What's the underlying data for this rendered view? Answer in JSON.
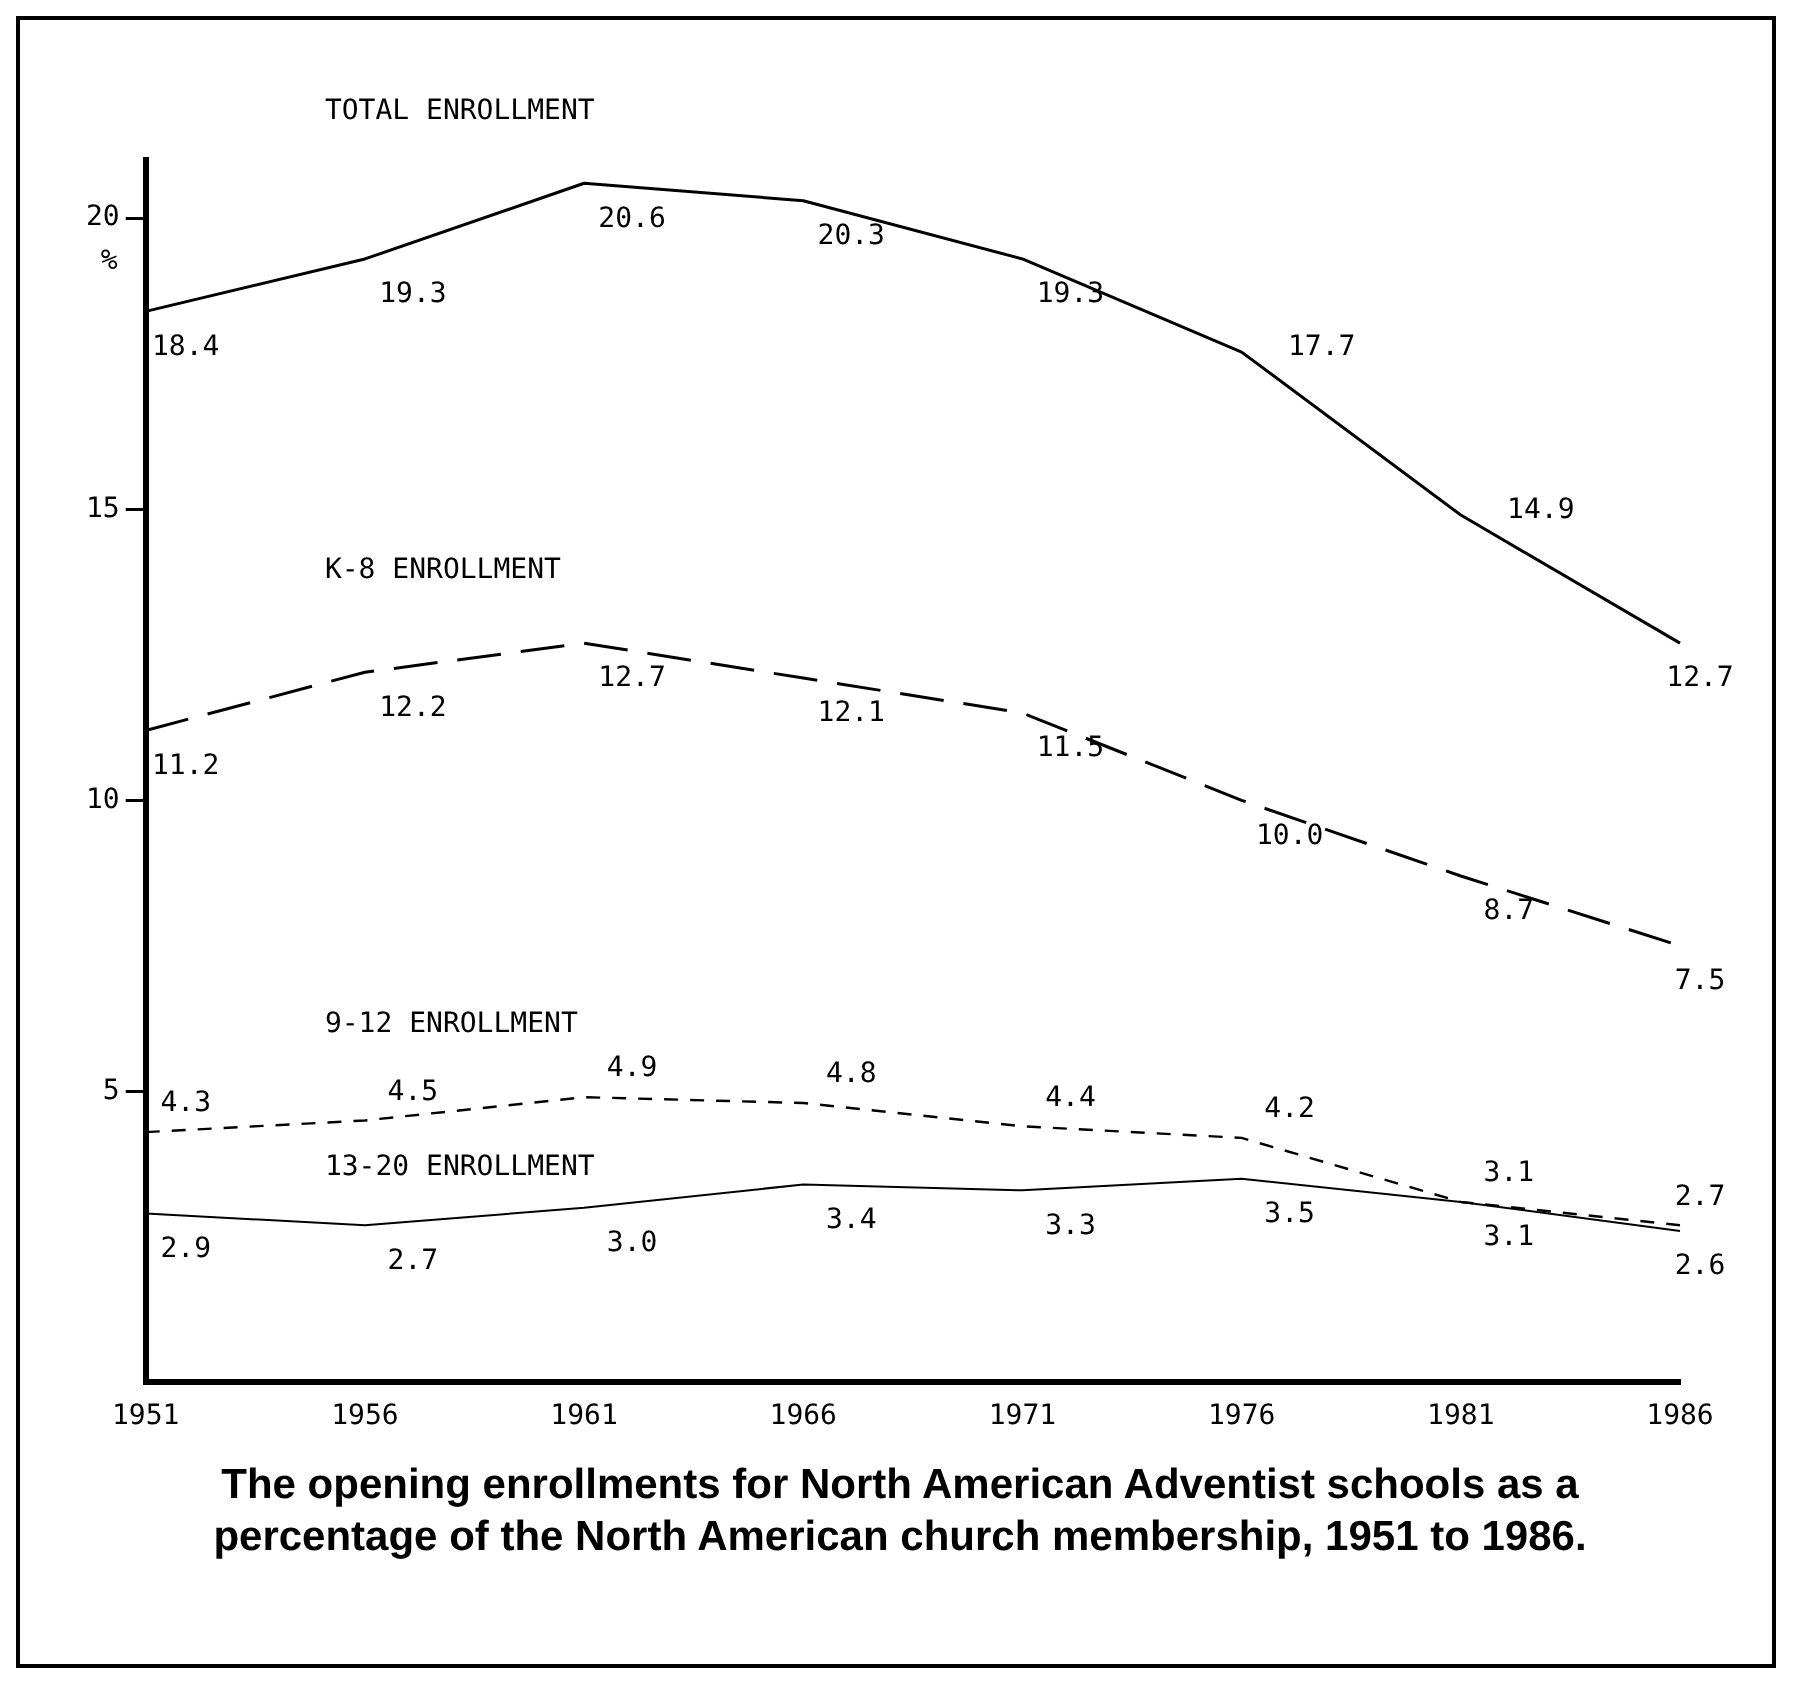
{
  "chart_data": {
    "type": "line",
    "ylabel": "%",
    "categories": [
      "1951",
      "1956",
      "1961",
      "1966",
      "1971",
      "1976",
      "1981",
      "1986"
    ],
    "ylim": [
      0,
      21
    ],
    "yticks": [
      5,
      10,
      15,
      20
    ],
    "grid": false,
    "legend": false,
    "marker": "none",
    "series": [
      {
        "name": "TOTAL ENROLLMENT",
        "color": "#000000",
        "line_style": "solid",
        "values": [
          18.4,
          19.3,
          20.6,
          20.3,
          19.3,
          17.7,
          14.9,
          12.7
        ],
        "value_labels": [
          "18.4",
          "19.3",
          "20.6",
          "20.3",
          "19.3",
          "17.7",
          "14.9",
          "12.7"
        ]
      },
      {
        "name": "K-8 ENROLLMENT",
        "color": "#000000",
        "line_style": "dashed",
        "values": [
          11.2,
          12.2,
          12.7,
          12.1,
          11.5,
          10.0,
          8.7,
          7.5
        ],
        "value_labels": [
          "11.2",
          "12.2",
          "12.7",
          "12.1",
          "11.5",
          "10.0",
          "8.7",
          "7.5"
        ]
      },
      {
        "name": "9-12 ENROLLMENT",
        "color": "#000000",
        "line_style": "dotted",
        "values": [
          4.3,
          4.5,
          4.9,
          4.8,
          4.4,
          4.2,
          3.1,
          2.7
        ],
        "value_labels": [
          "4.3",
          "4.5",
          "4.9",
          "4.8",
          "4.4",
          "4.2",
          "3.1",
          "2.7"
        ]
      },
      {
        "name": "13-20 ENROLLMENT",
        "color": "#000000",
        "line_style": "solid",
        "values": [
          2.9,
          2.7,
          3.0,
          3.4,
          3.3,
          3.5,
          3.1,
          2.6
        ],
        "value_labels": [
          "2.9",
          "2.7",
          "3.0",
          "3.4",
          "3.3",
          "3.5",
          "3.1",
          "2.6"
        ]
      }
    ],
    "annotations": [
      "The opening enrollments for North American Adventist schools as a percentage of the North American church membership, 1951 to 1986."
    ]
  }
}
